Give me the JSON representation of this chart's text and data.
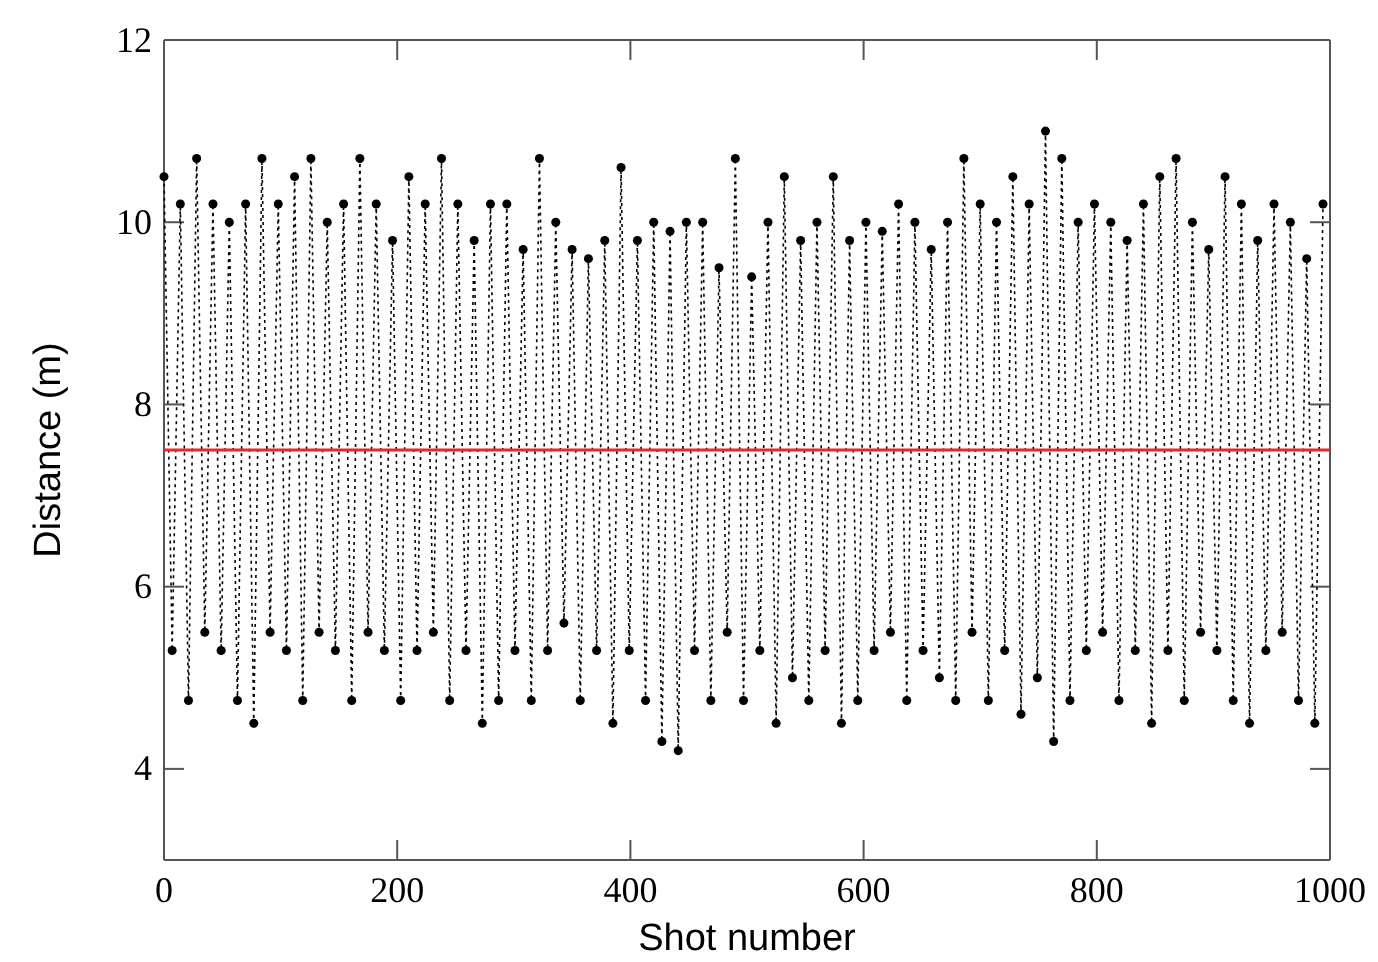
{
  "chart_data": {
    "type": "line",
    "xlabel": "Shot number",
    "ylabel": "Distance (m)",
    "marker": "circle",
    "line_style": "dotted",
    "grid": false,
    "xlim": [
      0,
      1000
    ],
    "xticks": [
      0,
      200,
      400,
      600,
      800,
      1000
    ],
    "ylim": [
      3,
      12
    ],
    "yticks": [
      4,
      6,
      8,
      10,
      12
    ],
    "ref_lines": [
      {
        "axis": "y",
        "value": 7.5,
        "color": "#e8262b"
      }
    ],
    "series": [
      {
        "color": "#000000",
        "x": [
          0,
          7,
          14,
          21,
          28,
          35,
          42,
          49,
          56,
          63,
          70,
          77,
          84,
          91,
          98,
          105,
          112,
          119,
          126,
          133,
          140,
          147,
          154,
          161,
          168,
          175,
          182,
          189,
          196,
          203,
          210,
          217,
          224,
          231,
          238,
          245,
          252,
          259,
          266,
          273,
          280,
          287,
          294,
          301,
          308,
          315,
          322,
          329,
          336,
          343,
          350,
          357,
          364,
          371,
          378,
          385,
          392,
          399,
          406,
          413,
          420,
          427,
          434,
          441,
          448,
          455,
          462,
          469,
          476,
          483,
          490,
          497,
          504,
          511,
          518,
          525,
          532,
          539,
          546,
          553,
          560,
          567,
          574,
          581,
          588,
          595,
          602,
          609,
          616,
          623,
          630,
          637,
          644,
          651,
          658,
          665,
          672,
          679,
          686,
          693,
          700,
          707,
          714,
          721,
          728,
          735,
          742,
          749,
          756,
          763,
          770,
          777,
          784,
          791,
          798,
          805,
          812,
          819,
          826,
          833,
          840,
          847,
          854,
          861,
          868,
          875,
          882,
          889,
          896,
          903,
          910,
          917,
          924,
          931,
          938,
          945,
          952,
          959,
          966,
          973,
          980,
          987,
          994
        ],
        "values": [
          10.5,
          5.3,
          10.2,
          4.75,
          10.7,
          5.5,
          10.2,
          5.3,
          10.0,
          4.75,
          10.2,
          4.5,
          10.7,
          5.5,
          10.2,
          5.3,
          10.5,
          4.75,
          10.7,
          5.5,
          10.0,
          5.3,
          10.2,
          4.75,
          10.7,
          5.5,
          10.2,
          5.3,
          9.8,
          4.75,
          10.5,
          5.3,
          10.2,
          5.5,
          10.7,
          4.75,
          10.2,
          5.3,
          9.8,
          4.5,
          10.2,
          4.75,
          10.2,
          5.3,
          9.7,
          4.75,
          10.7,
          5.3,
          10.0,
          5.6,
          9.7,
          4.75,
          9.6,
          5.3,
          9.8,
          4.5,
          10.6,
          5.3,
          9.8,
          4.75,
          10.0,
          4.3,
          9.9,
          4.2,
          10.0,
          5.3,
          10.0,
          4.75,
          9.5,
          5.5,
          10.7,
          4.75,
          9.4,
          5.3,
          10.0,
          4.5,
          10.5,
          5.0,
          9.8,
          4.75,
          10.0,
          5.3,
          10.5,
          4.5,
          9.8,
          4.75,
          10.0,
          5.3,
          9.9,
          5.5,
          10.2,
          4.75,
          10.0,
          5.3,
          9.7,
          5.0,
          10.0,
          4.75,
          10.7,
          5.5,
          10.2,
          4.75,
          10.0,
          5.3,
          10.5,
          4.6,
          10.2,
          5.0,
          11.0,
          4.3,
          10.7,
          4.75,
          10.0,
          5.3,
          10.2,
          5.5,
          10.0,
          4.75,
          9.8,
          5.3,
          10.2,
          4.5,
          10.5,
          5.3,
          10.7,
          4.75,
          10.0,
          5.5,
          9.7,
          5.3,
          10.5,
          4.75,
          10.2,
          4.5,
          9.8,
          5.3,
          10.2,
          5.5,
          10.0,
          4.75,
          9.6,
          4.5,
          10.2
        ]
      }
    ]
  }
}
